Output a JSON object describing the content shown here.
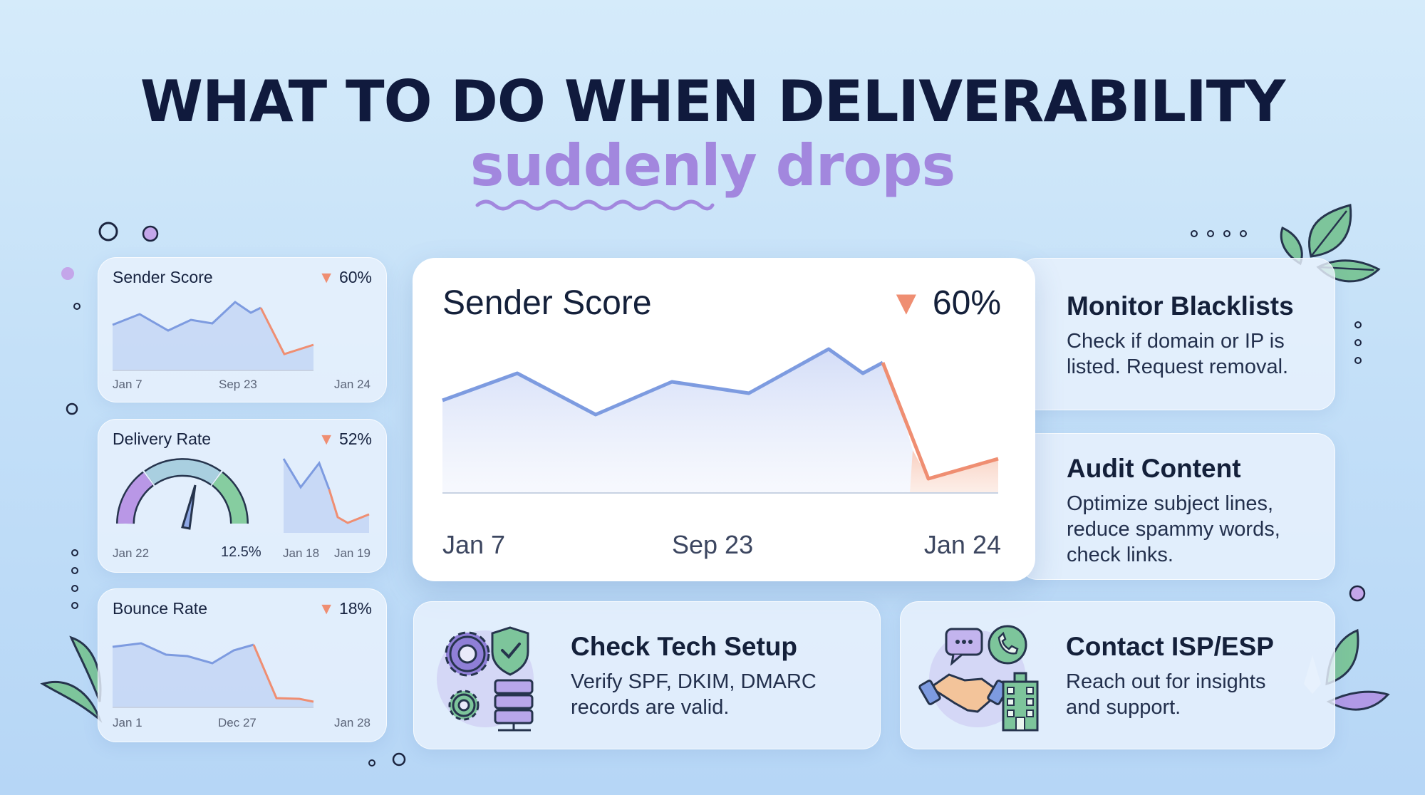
{
  "headline": {
    "line1": "WHAT TO DO WHEN DELIVERABILITY",
    "line2": "suddenly drops"
  },
  "mini_cards": [
    {
      "title": "Sender Score",
      "pct": "60%",
      "ticks": [
        "Jan 7",
        "Sep 23",
        "Jan 24"
      ]
    },
    {
      "title": "Delivery Rate",
      "pct": "52%",
      "gauge_left_label": "Jan 22",
      "gauge_value": "12.5%",
      "ticks": [
        "Jan 18",
        "Jan 19"
      ]
    },
    {
      "title": "Bounce Rate",
      "pct": "18%",
      "ticks": [
        "Jan 1",
        "Dec 27",
        "Jan 28"
      ]
    }
  ],
  "main_card": {
    "title": "Sender Score",
    "pct": "60%",
    "ticks": [
      "Jan 7",
      "Sep 23",
      "Jan 24"
    ]
  },
  "steps": [
    {
      "title": "Monitor Blacklists",
      "desc": [
        "Check if domain or IP is",
        "listed. Request removal."
      ]
    },
    {
      "title": "Audit Content",
      "desc": [
        "Optimize subject lines,",
        "reduce spammy words,",
        "check links."
      ]
    },
    {
      "title": "Check Tech Setup",
      "desc": [
        "Verify SPF, DKIM, DMARC",
        "records are valid."
      ],
      "icon": "gear-shield-server-icon"
    },
    {
      "title": "Contact ISP/ESP",
      "desc": [
        "Reach out for insights",
        "and support."
      ],
      "icon": "handshake-building-icon"
    }
  ],
  "colors": {
    "navy": "#101a3d",
    "purple": "#a287de",
    "line_blue": "#7d9be0",
    "drop_red": "#ef8e72",
    "leaf_green": "#76c39a"
  }
}
